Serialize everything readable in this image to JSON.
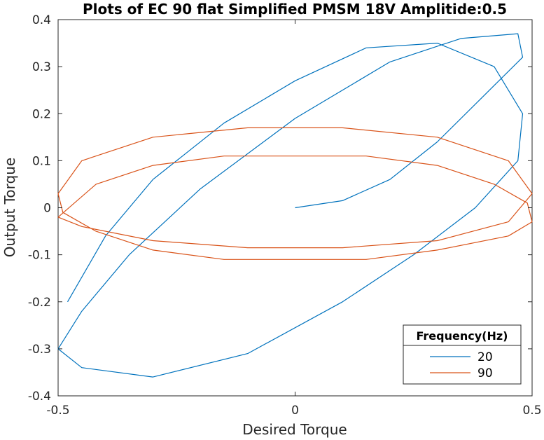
{
  "chart_data": {
    "type": "line",
    "title": "Plots of EC 90 flat Simplified PMSM 18V Amplitide:0.5",
    "xlabel": "Desired Torque",
    "ylabel": "Output Torque",
    "xlim": [
      -0.5,
      0.5
    ],
    "ylim": [
      -0.4,
      0.4
    ],
    "x_ticks": [
      "-0.5",
      "0",
      "0.5"
    ],
    "y_ticks": [
      "0.4",
      "0.3",
      "0.2",
      "0.1",
      "0",
      "-0.1",
      "-0.2",
      "-0.3",
      "-0.4"
    ],
    "grid": false,
    "legend_position": "bottom-right",
    "legend_title": "Frequency(Hz)",
    "series": [
      {
        "name": "20",
        "color": "#0072BD",
        "x": [
          0.0,
          0.1,
          0.2,
          0.3,
          0.4,
          0.48,
          0.47,
          0.35,
          0.2,
          0.0,
          -0.2,
          -0.35,
          -0.45,
          -0.5,
          -0.45,
          -0.3,
          -0.1,
          0.1,
          0.25,
          0.38,
          0.47,
          0.48,
          0.42,
          0.3,
          0.15,
          0.0,
          -0.15,
          -0.3,
          -0.4,
          -0.48
        ],
        "y": [
          0.0,
          0.015,
          0.06,
          0.14,
          0.24,
          0.32,
          0.37,
          0.36,
          0.31,
          0.19,
          0.04,
          -0.1,
          -0.22,
          -0.3,
          -0.34,
          -0.36,
          -0.31,
          -0.2,
          -0.1,
          0.0,
          0.1,
          0.2,
          0.3,
          0.35,
          0.34,
          0.27,
          0.18,
          0.06,
          -0.06,
          -0.2
        ]
      },
      {
        "name": "90",
        "color": "#D95319",
        "x": [
          -0.5,
          -0.42,
          -0.3,
          -0.15,
          0.0,
          0.15,
          0.3,
          0.42,
          0.49,
          0.5,
          0.45,
          0.3,
          0.15,
          0.0,
          -0.15,
          -0.3,
          -0.42,
          -0.49,
          -0.5,
          -0.45,
          -0.3,
          -0.1,
          0.1,
          0.3,
          0.45,
          0.5,
          0.45,
          0.3,
          0.1,
          -0.1,
          -0.3,
          -0.45,
          -0.5
        ],
        "y": [
          -0.02,
          0.05,
          0.09,
          0.11,
          0.11,
          0.11,
          0.09,
          0.05,
          0.01,
          -0.03,
          -0.06,
          -0.09,
          -0.11,
          -0.11,
          -0.11,
          -0.09,
          -0.05,
          -0.01,
          0.03,
          0.1,
          0.15,
          0.17,
          0.17,
          0.15,
          0.1,
          0.03,
          -0.03,
          -0.07,
          -0.085,
          -0.085,
          -0.07,
          -0.04,
          -0.02
        ]
      }
    ]
  }
}
